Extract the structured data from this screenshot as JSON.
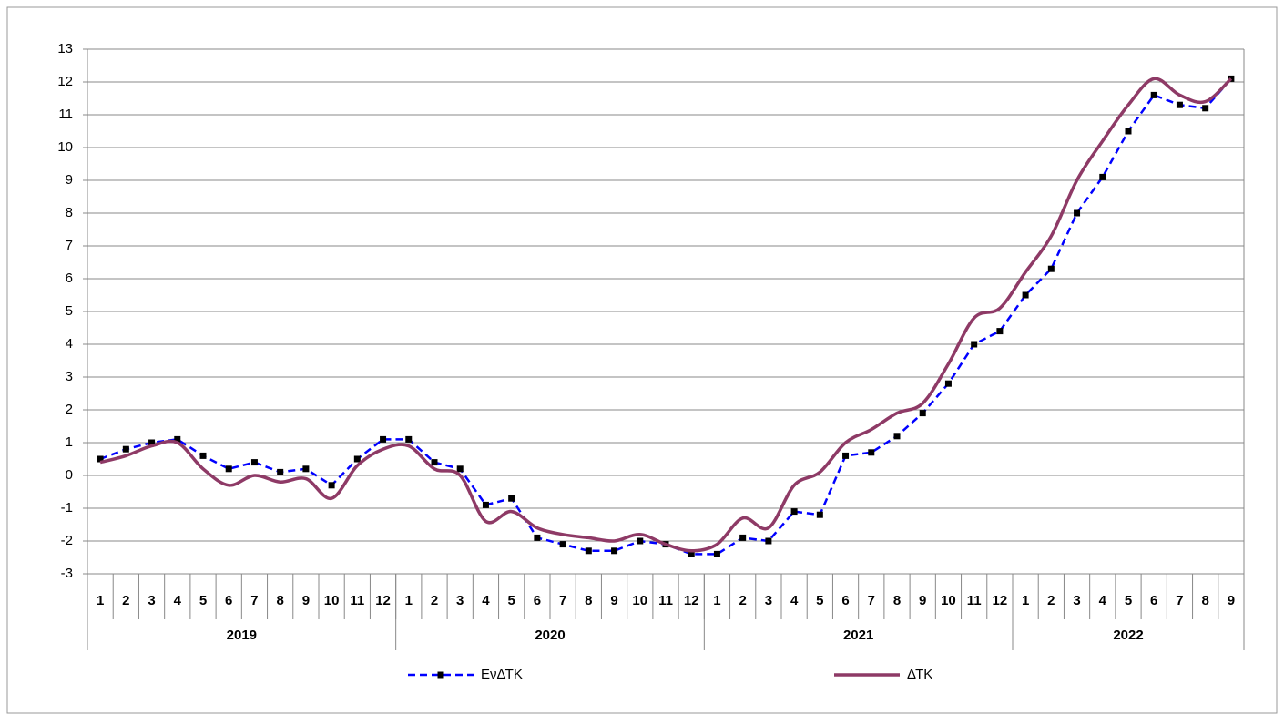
{
  "chart_data": {
    "type": "line",
    "categories": [
      "1",
      "2",
      "3",
      "4",
      "5",
      "6",
      "7",
      "8",
      "9",
      "10",
      "11",
      "12",
      "1",
      "2",
      "3",
      "4",
      "5",
      "6",
      "7",
      "8",
      "9",
      "10",
      "11",
      "12",
      "1",
      "2",
      "3",
      "4",
      "5",
      "6",
      "7",
      "8",
      "9",
      "10",
      "11",
      "12",
      "1",
      "2",
      "3",
      "4",
      "5",
      "6",
      "7",
      "8",
      "9"
    ],
    "groups": [
      "2019",
      "2020",
      "2021",
      "2022"
    ],
    "series": [
      {
        "name": "ΕνΔΤΚ",
        "color": "#0000ff",
        "dashed": true,
        "markers": true,
        "values": [
          0.5,
          0.8,
          1.0,
          1.1,
          0.6,
          0.2,
          0.4,
          0.1,
          0.2,
          -0.3,
          0.5,
          1.1,
          1.1,
          0.4,
          0.2,
          -0.9,
          -0.7,
          -1.9,
          -2.1,
          -2.3,
          -2.3,
          -2.0,
          -2.1,
          -2.4,
          -2.4,
          -1.9,
          -2.0,
          -1.1,
          -1.2,
          0.6,
          0.7,
          1.2,
          1.9,
          2.8,
          4.0,
          4.4,
          5.5,
          6.3,
          8.0,
          9.1,
          10.5,
          11.6,
          11.3,
          11.2,
          12.1
        ]
      },
      {
        "name": "ΔΤΚ",
        "color": "#8e3a66",
        "dashed": false,
        "markers": false,
        "values": [
          0.4,
          0.6,
          0.9,
          1.0,
          0.2,
          -0.3,
          0.0,
          -0.2,
          -0.1,
          -0.7,
          0.3,
          0.8,
          0.9,
          0.2,
          0.0,
          -1.4,
          -1.1,
          -1.6,
          -1.8,
          -1.9,
          -2.0,
          -1.8,
          -2.1,
          -2.3,
          -2.1,
          -1.3,
          -1.6,
          -0.3,
          0.1,
          1.0,
          1.4,
          1.9,
          2.2,
          3.4,
          4.8,
          5.1,
          6.2,
          7.3,
          9.0,
          10.2,
          11.3,
          12.1,
          11.6,
          11.4,
          12.1
        ]
      }
    ],
    "ylim": [
      -3,
      13
    ],
    "yticks": [
      -3,
      -2,
      -1,
      0,
      1,
      2,
      3,
      4,
      5,
      6,
      7,
      8,
      9,
      10,
      11,
      12,
      13
    ],
    "grid": true,
    "legend": "bottom"
  }
}
